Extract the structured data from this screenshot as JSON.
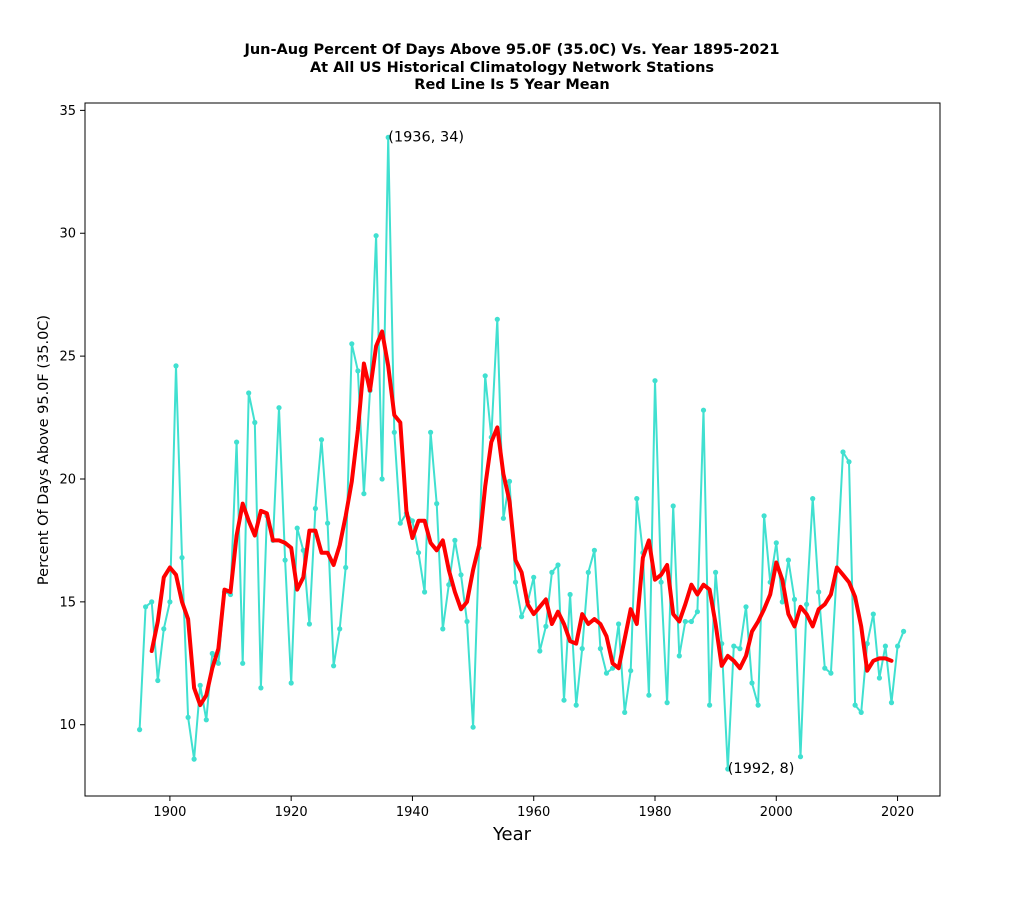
{
  "chart_data": {
    "type": "line",
    "title_lines": [
      "Jun-Aug Percent Of Days Above 95.0F (35.0C) Vs. Year 1895-2021",
      "At All US Historical Climatology Network Stations",
      "Red Line Is 5 Year Mean"
    ],
    "xlabel": "Year",
    "ylabel": "Percent Of Days Above 95.0F (35.0C)",
    "xlim": [
      1886,
      2027
    ],
    "ylim": [
      7.1,
      35.3
    ],
    "x_ticks": [
      1900,
      1920,
      1940,
      1960,
      1980,
      2000,
      2020
    ],
    "y_ticks": [
      10,
      15,
      20,
      25,
      30,
      35
    ],
    "grid": false,
    "series": [
      {
        "color": "#40e0d0",
        "marker": "dot",
        "x": [
          1895,
          1896,
          1897,
          1898,
          1899,
          1900,
          1901,
          1902,
          1903,
          1904,
          1905,
          1906,
          1907,
          1908,
          1909,
          1910,
          1911,
          1912,
          1913,
          1914,
          1915,
          1916,
          1917,
          1918,
          1919,
          1920,
          1921,
          1922,
          1923,
          1924,
          1925,
          1926,
          1927,
          1928,
          1929,
          1930,
          1931,
          1932,
          1933,
          1934,
          1935,
          1936,
          1937,
          1938,
          1939,
          1940,
          1941,
          1942,
          1943,
          1944,
          1945,
          1946,
          1947,
          1948,
          1949,
          1950,
          1951,
          1952,
          1953,
          1954,
          1955,
          1956,
          1957,
          1958,
          1959,
          1960,
          1961,
          1962,
          1963,
          1964,
          1965,
          1966,
          1967,
          1968,
          1969,
          1970,
          1971,
          1972,
          1973,
          1974,
          1975,
          1976,
          1977,
          1978,
          1979,
          1980,
          1981,
          1982,
          1983,
          1984,
          1985,
          1986,
          1987,
          1988,
          1989,
          1990,
          1991,
          1992,
          1993,
          1994,
          1995,
          1996,
          1997,
          1998,
          1999,
          2000,
          2001,
          2002,
          2003,
          2004,
          2005,
          2006,
          2007,
          2008,
          2009,
          2010,
          2011,
          2012,
          2013,
          2014,
          2015,
          2016,
          2017,
          2018,
          2019,
          2020,
          2021
        ],
        "y": [
          9.8,
          14.8,
          15.0,
          11.8,
          13.9,
          15.0,
          24.6,
          16.8,
          10.3,
          8.6,
          11.6,
          10.2,
          12.9,
          12.5,
          15.4,
          15.3,
          21.5,
          12.5,
          23.5,
          22.3,
          11.5,
          18.5,
          17.5,
          22.9,
          16.7,
          11.7,
          18.0,
          17.1,
          14.1,
          18.8,
          21.6,
          18.2,
          12.4,
          13.9,
          16.4,
          25.5,
          24.4,
          19.4,
          23.6,
          29.9,
          20.0,
          33.9,
          21.9,
          18.2,
          18.6,
          18.3,
          17.0,
          15.4,
          21.9,
          19.0,
          13.9,
          15.7,
          17.5,
          16.1,
          14.2,
          9.9,
          17.2,
          24.2,
          21.7,
          26.5,
          18.4,
          19.9,
          15.8,
          14.4,
          15.0,
          16.0,
          13.0,
          14.0,
          16.2,
          16.5,
          11.0,
          15.3,
          10.8,
          13.1,
          16.2,
          17.1,
          13.1,
          12.1,
          12.3,
          14.1,
          10.5,
          12.2,
          19.2,
          17.0,
          11.2,
          24.0,
          15.8,
          10.9,
          18.9,
          12.8,
          14.2,
          14.2,
          14.6,
          22.8,
          10.8,
          16.2,
          13.3,
          8.2,
          13.2,
          13.1,
          14.8,
          11.7,
          10.8,
          18.5,
          15.8,
          17.4,
          15.0,
          16.7,
          15.1,
          8.7,
          14.9,
          19.2,
          15.4,
          12.3,
          12.1,
          16.3,
          21.1,
          20.7,
          10.8,
          10.5,
          13.3,
          14.5,
          11.9,
          13.2,
          10.9,
          13.2,
          13.8
        ]
      },
      {
        "color": "#ff0000",
        "name": "5 Year Mean",
        "x": [
          1897,
          1898,
          1899,
          1900,
          1901,
          1902,
          1903,
          1904,
          1905,
          1906,
          1907,
          1908,
          1909,
          1910,
          1911,
          1912,
          1913,
          1914,
          1915,
          1916,
          1917,
          1918,
          1919,
          1920,
          1921,
          1922,
          1923,
          1924,
          1925,
          1926,
          1927,
          1928,
          1929,
          1930,
          1931,
          1932,
          1933,
          1934,
          1935,
          1936,
          1937,
          1938,
          1939,
          1940,
          1941,
          1942,
          1943,
          1944,
          1945,
          1946,
          1947,
          1948,
          1949,
          1950,
          1951,
          1952,
          1953,
          1954,
          1955,
          1956,
          1957,
          1958,
          1959,
          1960,
          1961,
          1962,
          1963,
          1964,
          1965,
          1966,
          1967,
          1968,
          1969,
          1970,
          1971,
          1972,
          1973,
          1974,
          1975,
          1976,
          1977,
          1978,
          1979,
          1980,
          1981,
          1982,
          1983,
          1984,
          1985,
          1986,
          1987,
          1988,
          1989,
          1990,
          1991,
          1992,
          1993,
          1994,
          1995,
          1996,
          1997,
          1998,
          1999,
          2000,
          2001,
          2002,
          2003,
          2004,
          2005,
          2006,
          2007,
          2008,
          2009,
          2010,
          2011,
          2012,
          2013,
          2014,
          2015,
          2016,
          2017,
          2018,
          2019
        ],
        "y": [
          13.0,
          14.2,
          16.0,
          16.4,
          16.1,
          15.0,
          14.3,
          11.5,
          10.8,
          11.2,
          12.3,
          13.1,
          15.5,
          15.4,
          17.7,
          19.0,
          18.3,
          17.7,
          18.7,
          18.6,
          17.5,
          17.5,
          17.4,
          17.2,
          15.5,
          16.0,
          17.9,
          17.9,
          17.0,
          17.0,
          16.5,
          17.3,
          18.5,
          19.9,
          22.0,
          24.7,
          23.6,
          25.4,
          26.0,
          24.6,
          22.6,
          22.3,
          18.7,
          17.6,
          18.3,
          18.3,
          17.4,
          17.1,
          17.5,
          16.3,
          15.4,
          14.7,
          15.0,
          16.3,
          17.3,
          19.7,
          21.5,
          22.1,
          20.2,
          19.1,
          16.7,
          16.2,
          14.9,
          14.5,
          14.8,
          15.1,
          14.1,
          14.6,
          14.1,
          13.4,
          13.3,
          14.5,
          14.1,
          14.3,
          14.1,
          13.6,
          12.5,
          12.3,
          13.5,
          14.7,
          14.1,
          16.8,
          17.5,
          15.9,
          16.1,
          16.5,
          14.5,
          14.2,
          14.9,
          15.7,
          15.3,
          15.7,
          15.5,
          14.1,
          12.4,
          12.8,
          12.6,
          12.3,
          12.8,
          13.8,
          14.2,
          14.7,
          15.3,
          16.6,
          15.9,
          14.5,
          14.0,
          14.8,
          14.5,
          14.0,
          14.7,
          14.9,
          15.3,
          16.4,
          16.1,
          15.8,
          15.2,
          14.0,
          12.2,
          12.6,
          12.7,
          12.7,
          12.6
        ]
      }
    ],
    "annotations": [
      {
        "text": "(1936, 34)",
        "x": 1936,
        "y": 33.9
      },
      {
        "text": "(1992, 8)",
        "x": 1992,
        "y": 8.2
      }
    ]
  }
}
